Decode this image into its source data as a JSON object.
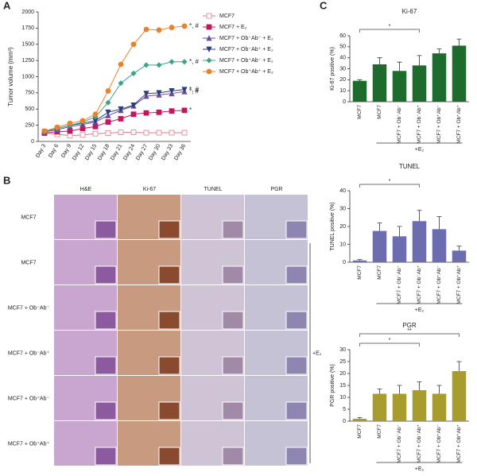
{
  "panels": [
    "A",
    "B",
    "C"
  ],
  "chart_data": [
    {
      "type": "line",
      "y_label": "Tumor  volume (mm³)",
      "categories": [
        "Day 3",
        "Day 6",
        "Day 9",
        "Day 12",
        "Day 15",
        "Day 18",
        "Day 21",
        "Day 24",
        "Day 27",
        "Day 30",
        "Day 33",
        "Day 36"
      ],
      "ylim": [
        0,
        2000
      ],
      "yticks": [
        0,
        250,
        500,
        750,
        1000,
        1250,
        1500,
        1750,
        2000
      ],
      "series": [
        {
          "name": "MCF7",
          "color": "#e07a8a",
          "marker": "square-open",
          "values": [
            130,
            110,
            90,
            100,
            120,
            130,
            140,
            140,
            135,
            135,
            135,
            135
          ]
        },
        {
          "name": "MCF7 + E₂",
          "color": "#c2185b",
          "marker": "square",
          "values": [
            130,
            150,
            160,
            200,
            230,
            300,
            350,
            420,
            440,
            450,
            470,
            480
          ]
        },
        {
          "name": "MCF7 + Ob⁻Ab⁻ + E₂",
          "color": "#6a4c9c",
          "marker": "triangle",
          "values": [
            150,
            180,
            230,
            260,
            300,
            400,
            480,
            550,
            700,
            720,
            740,
            770
          ]
        },
        {
          "name": "MCF7 + Ob⁻Ab⁺ + E₂",
          "color": "#2c3e7a",
          "marker": "triangle-down",
          "values": [
            150,
            200,
            250,
            280,
            320,
            450,
            500,
            560,
            740,
            750,
            780,
            800
          ]
        },
        {
          "name": "MCF7 + Ob⁺Ab⁻ + E₂",
          "color": "#3aa38a",
          "marker": "diamond",
          "values": [
            150,
            200,
            250,
            300,
            380,
            600,
            900,
            1050,
            1180,
            1180,
            1230,
            1230
          ]
        },
        {
          "name": "MCF7 + Ob⁺Ab⁺ + E₂",
          "color": "#e8822a",
          "marker": "circle",
          "values": [
            160,
            220,
            280,
            320,
            420,
            780,
            1190,
            1500,
            1730,
            1720,
            1760,
            1780
          ]
        }
      ],
      "annotations": [
        "*, #",
        "*, #",
        "*, #",
        "*, #",
        "*"
      ]
    },
    {
      "type": "bar",
      "title": "Ki-67",
      "y_label": "Ki-67 positive (%)",
      "color": "#1e6b2e",
      "categories": [
        "MCF7",
        "MCF7",
        "MCF7 + Ob⁻Ab⁻",
        "MCF7 + Ob⁻Ab⁺",
        "MCF7 + Ob⁺Ab⁻",
        "MCF7 + Ob⁺Ab⁺"
      ],
      "values": [
        19,
        34,
        28,
        33,
        44,
        51
      ],
      "errors": [
        1,
        6,
        8,
        9,
        4,
        6
      ],
      "ylim": [
        0,
        60
      ],
      "yticks": [
        0,
        10,
        20,
        30,
        40,
        50,
        60
      ],
      "group_label": "+E₂",
      "annotations": [
        "*"
      ]
    },
    {
      "type": "bar",
      "title": "TUNEL",
      "y_label": "TUNEL positive (%)",
      "color": "#6c6cb0",
      "categories": [
        "MCF7",
        "MCF7",
        "MCF7 + Ob⁻Ab⁻",
        "MCF7 + Ob⁻Ab⁺",
        "MCF7 + Ob⁺Ab⁻",
        "MCF7 + Ob⁺Ab⁺"
      ],
      "values": [
        1,
        17.5,
        14.5,
        23,
        18.5,
        6.5
      ],
      "errors": [
        0.5,
        4.5,
        5.5,
        6,
        7,
        2.5
      ],
      "ylim": [
        0,
        40
      ],
      "yticks": [
        0,
        10,
        20,
        30,
        40
      ],
      "group_label": "+E₂",
      "annotations": [
        "*"
      ]
    },
    {
      "type": "bar",
      "title": "PGR",
      "y_label": "PGR positive (%)",
      "color": "#a89c2e",
      "categories": [
        "MCF7",
        "MCF7",
        "MCF7 + Ob⁻Ab⁻",
        "MCF7 + Ob⁻Ab⁺",
        "MCF7 + Ob⁺Ab⁻",
        "MCF7 + Ob⁺Ab⁺"
      ],
      "values": [
        1,
        11.5,
        11.5,
        13,
        11.5,
        21
      ],
      "errors": [
        0.5,
        2,
        3.5,
        3.5,
        3.5,
        4
      ],
      "ylim": [
        0,
        30
      ],
      "yticks": [
        0,
        5,
        10,
        15,
        20,
        25,
        30
      ],
      "group_label": "+E₂",
      "annotations": [
        "*",
        "**"
      ]
    }
  ],
  "image_grid": {
    "columns": [
      "H&E",
      "Ki-67",
      "TUNEL",
      "PGR"
    ],
    "rows": [
      "MCF7",
      "MCF7",
      "MCF7 + Ob⁻Ab⁻",
      "MCF7 + Ob⁻Ab⁺",
      "MCF7 + Ob⁺Ab⁻",
      "MCF7 + Ob⁺Ab⁺"
    ],
    "group_label": "+E₂"
  }
}
